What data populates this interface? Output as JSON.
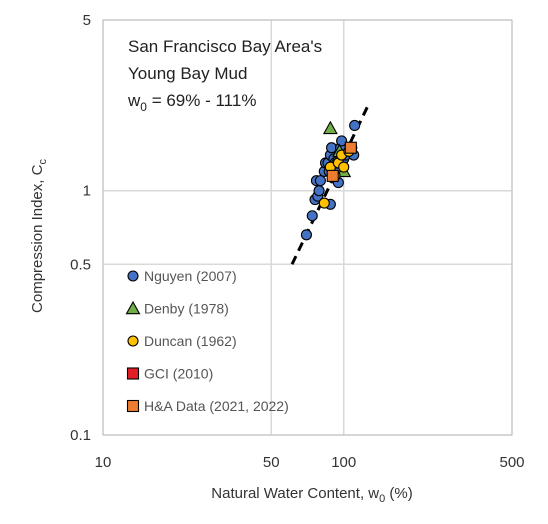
{
  "chart_data": {
    "type": "scatter",
    "xscale": "log",
    "yscale": "log",
    "xlim": [
      10,
      500
    ],
    "ylim": [
      0.1,
      5
    ],
    "grid": true,
    "x_ticks": [
      10,
      50,
      100,
      500
    ],
    "x_tick_labels": [
      "10",
      "50",
      "100",
      "500"
    ],
    "y_ticks": [
      0.1,
      0.5,
      1,
      5
    ],
    "y_tick_labels": [
      "0.1",
      "0.5",
      "1",
      "5"
    ],
    "xlabel": {
      "main": "Natural Water Content, w",
      "sub": "0",
      "tail": " (%)"
    },
    "ylabel": {
      "main": "Compression Index, C",
      "sub": "c"
    },
    "annotation": {
      "line1": "San Francisco Bay Area's",
      "line2": "Young Bay Mud",
      "line3_main": "w",
      "line3_sub": "0",
      "line3_tail": " = 69% - 111%"
    },
    "legend_position": "bottom-left",
    "trendline": {
      "style": "dashed",
      "color": "#000000",
      "x": [
        61,
        128
      ],
      "y": [
        0.5,
        2.3
      ]
    },
    "series": [
      {
        "name": "Nguyen (2007)",
        "marker": "circle",
        "color": "#4472C4",
        "x": [
          70,
          74,
          76,
          77,
          78,
          79,
          80,
          83,
          84,
          86,
          87,
          88,
          88,
          89,
          90,
          91,
          92,
          93,
          95,
          96,
          97,
          98,
          100,
          102,
          105,
          108,
          110,
          111
        ],
        "y": [
          0.66,
          0.79,
          0.92,
          1.1,
          0.95,
          1.0,
          1.1,
          1.2,
          1.3,
          1.3,
          1.2,
          0.88,
          1.4,
          1.5,
          1.25,
          1.35,
          1.3,
          1.2,
          1.08,
          1.4,
          1.5,
          1.6,
          1.35,
          1.4,
          1.45,
          1.5,
          1.4,
          1.85
        ]
      },
      {
        "name": "Denby (1978)",
        "marker": "triangle",
        "color": "#70AD47",
        "x": [
          88,
          92,
          96,
          100
        ],
        "y": [
          1.8,
          1.3,
          1.45,
          1.2
        ]
      },
      {
        "name": "Duncan (1962)",
        "marker": "circle",
        "color": "#FFC000",
        "x": [
          83,
          88,
          92,
          95,
          98,
          100,
          105
        ],
        "y": [
          0.89,
          1.25,
          1.15,
          1.3,
          1.4,
          1.25,
          1.45
        ]
      },
      {
        "name": "GCI (2010)",
        "marker": "square",
        "color": "#E21F26",
        "x": [],
        "y": []
      },
      {
        "name": "H&A Data (2021, 2022)",
        "marker": "square",
        "color": "#ED7D31",
        "x": [
          90,
          107
        ],
        "y": [
          1.15,
          1.5
        ]
      }
    ]
  }
}
